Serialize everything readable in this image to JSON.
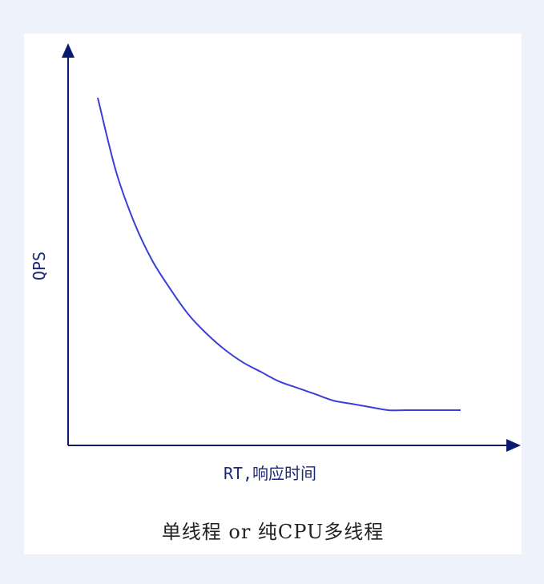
{
  "chart_data": {
    "type": "line",
    "title": "",
    "xlabel": "RT,响应时间",
    "ylabel": "QPS",
    "caption": "单线程 or 纯CPU多线程",
    "x_ticks": false,
    "y_ticks": false,
    "grid": false,
    "legend": "none",
    "axis_color": "#0a1a6e",
    "line_color": "#3b3fd6",
    "xlim": [
      0,
      100
    ],
    "ylim": [
      0,
      100
    ],
    "series": [
      {
        "x": [
          0,
          5,
          10,
          15,
          20,
          25,
          30,
          35,
          40,
          45,
          50,
          55,
          60,
          65,
          70,
          75,
          80,
          85,
          100
        ],
        "y": [
          100,
          77,
          61,
          49,
          40,
          32,
          26,
          21,
          17,
          14,
          11,
          9,
          7,
          5,
          4,
          3,
          2,
          2,
          2
        ]
      }
    ]
  }
}
